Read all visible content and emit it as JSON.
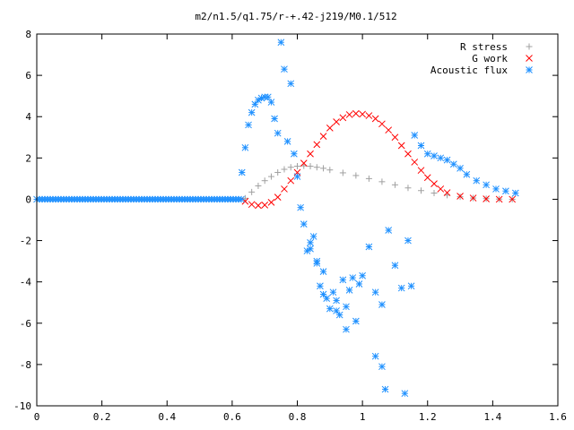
{
  "chart_data": {
    "type": "scatter",
    "title": "m2/n1.5/q1.75/r-+.42-j219/M0.1/512",
    "xlabel": "",
    "ylabel": "",
    "xlim": [
      0,
      1.6
    ],
    "ylim": [
      -10,
      8
    ],
    "xticks": [
      "0",
      "0.2",
      "0.4",
      "0.6",
      "0.8",
      "1",
      "1.2",
      "1.4",
      "1.6"
    ],
    "yticks": [
      "-10",
      "-8",
      "-6",
      "-4",
      "-2",
      "0",
      "2",
      "4",
      "6",
      "8"
    ],
    "grid": false,
    "legend_position": "top-right",
    "series": [
      {
        "name": "R stress",
        "marker": "plus",
        "color": "#a0a0a0",
        "x": [
          0.64,
          0.66,
          0.68,
          0.7,
          0.72,
          0.74,
          0.76,
          0.78,
          0.8,
          0.82,
          0.84,
          0.86,
          0.88,
          0.9,
          0.94,
          0.98,
          1.02,
          1.06,
          1.1,
          1.14,
          1.18,
          1.22,
          1.26,
          1.3,
          1.34,
          1.38,
          1.42,
          1.46
        ],
        "y": [
          0.05,
          0.35,
          0.65,
          0.9,
          1.1,
          1.3,
          1.45,
          1.55,
          1.6,
          1.62,
          1.6,
          1.55,
          1.5,
          1.42,
          1.28,
          1.15,
          1.0,
          0.85,
          0.7,
          0.55,
          0.42,
          0.3,
          0.2,
          0.12,
          0.06,
          0.03,
          0.01,
          0.0
        ]
      },
      {
        "name": "G work",
        "marker": "cross",
        "color": "#ff0000",
        "x": [
          0.64,
          0.66,
          0.68,
          0.7,
          0.72,
          0.74,
          0.76,
          0.78,
          0.8,
          0.82,
          0.84,
          0.86,
          0.88,
          0.9,
          0.92,
          0.94,
          0.96,
          0.98,
          1.0,
          1.02,
          1.04,
          1.06,
          1.08,
          1.1,
          1.12,
          1.14,
          1.16,
          1.18,
          1.2,
          1.22,
          1.24,
          1.26,
          1.3,
          1.34,
          1.38,
          1.42,
          1.46
        ],
        "y": [
          -0.1,
          -0.25,
          -0.3,
          -0.28,
          -0.15,
          0.1,
          0.5,
          0.9,
          1.3,
          1.75,
          2.2,
          2.65,
          3.05,
          3.45,
          3.75,
          3.95,
          4.1,
          4.15,
          4.12,
          4.05,
          3.9,
          3.65,
          3.35,
          3.0,
          2.6,
          2.2,
          1.8,
          1.4,
          1.05,
          0.75,
          0.5,
          0.32,
          0.15,
          0.06,
          0.02,
          0.0,
          0.0
        ]
      },
      {
        "name": "Acoustic flux",
        "marker": "star",
        "color": "#1e90ff",
        "flat_x_range": [
          0,
          0.63
        ],
        "flat_y": 0,
        "x": [
          0.63,
          0.64,
          0.65,
          0.66,
          0.67,
          0.68,
          0.69,
          0.7,
          0.71,
          0.72,
          0.73,
          0.75,
          0.76,
          0.78,
          0.74,
          0.77,
          0.79,
          0.8,
          0.81,
          0.82,
          0.83,
          0.84,
          0.85,
          0.86,
          0.87,
          0.88,
          0.89,
          0.9,
          0.91,
          0.92,
          0.93,
          0.94,
          0.95,
          0.96,
          0.97,
          0.98,
          0.99,
          1.0,
          1.02,
          1.04,
          1.06,
          1.08,
          1.1,
          1.12,
          1.14,
          1.15,
          1.16,
          1.18,
          1.2,
          1.22,
          1.24,
          1.26,
          1.28,
          1.3,
          1.32,
          1.35,
          1.38,
          1.41,
          1.44,
          1.47,
          1.04,
          1.06,
          1.07,
          1.13,
          0.95,
          0.92,
          0.88,
          0.86,
          0.84
        ],
        "y": [
          1.3,
          2.5,
          3.6,
          4.2,
          4.6,
          4.8,
          4.9,
          4.95,
          4.95,
          4.7,
          3.9,
          7.6,
          6.3,
          5.6,
          3.2,
          2.8,
          2.2,
          1.1,
          -0.4,
          -1.2,
          -2.5,
          -2.1,
          -1.8,
          -3.0,
          -4.2,
          -3.5,
          -4.8,
          -5.3,
          -4.5,
          -4.9,
          -5.6,
          -3.9,
          -5.2,
          -4.4,
          -3.8,
          -5.9,
          -4.1,
          -3.7,
          -2.3,
          -4.5,
          -5.1,
          -1.5,
          -3.2,
          -4.3,
          -2.0,
          -4.2,
          3.1,
          2.6,
          2.2,
          2.1,
          2.0,
          1.9,
          1.7,
          1.5,
          1.2,
          0.9,
          0.7,
          0.5,
          0.4,
          0.3,
          -7.6,
          -8.1,
          -9.2,
          -9.4,
          -6.3,
          -5.4,
          -4.6,
          -3.1,
          -2.4
        ]
      }
    ]
  }
}
